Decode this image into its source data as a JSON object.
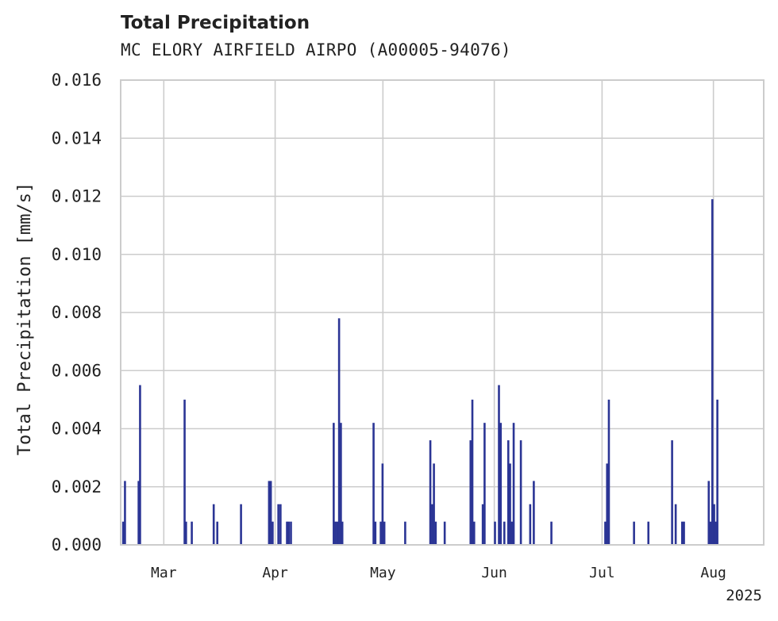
{
  "chart_data": {
    "type": "bar",
    "title": "Total Precipitation",
    "subtitle": "MC ELORY AIRFIELD AIRPO (A00005-94076)",
    "ylabel": "Total Precipitation [mm/s]",
    "xlabel": "",
    "ylim": [
      0,
      0.016
    ],
    "yticks": [
      "0.000",
      "0.002",
      "0.004",
      "0.006",
      "0.008",
      "0.010",
      "0.012",
      "0.014",
      "0.016"
    ],
    "xlim_days": [
      0,
      179
    ],
    "xticks": [
      {
        "label": "Mar",
        "day": 12
      },
      {
        "label": "Apr",
        "day": 43
      },
      {
        "label": "May",
        "day": 73
      },
      {
        "label": "Jun",
        "day": 104
      },
      {
        "label": "Jul",
        "day": 134
      },
      {
        "label": "Aug",
        "day": 165
      }
    ],
    "year_label": "2025",
    "grid": true,
    "bar_color": "#2b3595",
    "series": [
      {
        "name": "Total Precipitation",
        "points": [
          {
            "day": 0.7,
            "value": 0.0008
          },
          {
            "day": 1.2,
            "value": 0.0022
          },
          {
            "day": 5.0,
            "value": 0.0022
          },
          {
            "day": 5.4,
            "value": 0.0055
          },
          {
            "day": 17.8,
            "value": 0.005
          },
          {
            "day": 18.2,
            "value": 0.0008
          },
          {
            "day": 19.8,
            "value": 0.0008
          },
          {
            "day": 25.9,
            "value": 0.0014
          },
          {
            "day": 26.9,
            "value": 0.0008
          },
          {
            "day": 33.5,
            "value": 0.0014
          },
          {
            "day": 41.3,
            "value": 0.0022
          },
          {
            "day": 41.8,
            "value": 0.0022
          },
          {
            "day": 42.3,
            "value": 0.0008
          },
          {
            "day": 43.9,
            "value": 0.0014
          },
          {
            "day": 44.5,
            "value": 0.0014
          },
          {
            "day": 46.3,
            "value": 0.0008
          },
          {
            "day": 46.8,
            "value": 0.0008
          },
          {
            "day": 47.4,
            "value": 0.0008
          },
          {
            "day": 59.3,
            "value": 0.0042
          },
          {
            "day": 59.8,
            "value": 0.0008
          },
          {
            "day": 60.3,
            "value": 0.0008
          },
          {
            "day": 60.8,
            "value": 0.0078
          },
          {
            "day": 61.3,
            "value": 0.0042
          },
          {
            "day": 61.7,
            "value": 0.0008
          },
          {
            "day": 70.4,
            "value": 0.0042
          },
          {
            "day": 70.9,
            "value": 0.0008
          },
          {
            "day": 72.4,
            "value": 0.0008
          },
          {
            "day": 72.9,
            "value": 0.0028
          },
          {
            "day": 73.4,
            "value": 0.0008
          },
          {
            "day": 79.2,
            "value": 0.0008
          },
          {
            "day": 86.2,
            "value": 0.0036
          },
          {
            "day": 86.7,
            "value": 0.0014
          },
          {
            "day": 87.2,
            "value": 0.0028
          },
          {
            "day": 87.7,
            "value": 0.0008
          },
          {
            "day": 90.2,
            "value": 0.0008
          },
          {
            "day": 97.4,
            "value": 0.0036
          },
          {
            "day": 97.9,
            "value": 0.005
          },
          {
            "day": 98.4,
            "value": 0.0008
          },
          {
            "day": 100.8,
            "value": 0.0014
          },
          {
            "day": 101.3,
            "value": 0.0042
          },
          {
            "day": 104.2,
            "value": 0.0008
          },
          {
            "day": 105.3,
            "value": 0.0055
          },
          {
            "day": 105.8,
            "value": 0.0042
          },
          {
            "day": 106.8,
            "value": 0.0008
          },
          {
            "day": 107.9,
            "value": 0.0036
          },
          {
            "day": 108.4,
            "value": 0.0028
          },
          {
            "day": 108.9,
            "value": 0.0008
          },
          {
            "day": 109.4,
            "value": 0.0042
          },
          {
            "day": 111.4,
            "value": 0.0036
          },
          {
            "day": 114.0,
            "value": 0.0014
          },
          {
            "day": 115.0,
            "value": 0.0022
          },
          {
            "day": 119.9,
            "value": 0.0008
          },
          {
            "day": 134.9,
            "value": 0.0008
          },
          {
            "day": 135.4,
            "value": 0.0028
          },
          {
            "day": 135.9,
            "value": 0.005
          },
          {
            "day": 142.9,
            "value": 0.0008
          },
          {
            "day": 146.9,
            "value": 0.0008
          },
          {
            "day": 153.5,
            "value": 0.0036
          },
          {
            "day": 154.5,
            "value": 0.0014
          },
          {
            "day": 156.3,
            "value": 0.0008
          },
          {
            "day": 156.8,
            "value": 0.0008
          },
          {
            "day": 163.7,
            "value": 0.0022
          },
          {
            "day": 164.2,
            "value": 0.0008
          },
          {
            "day": 164.7,
            "value": 0.0119
          },
          {
            "day": 165.2,
            "value": 0.0014
          },
          {
            "day": 165.6,
            "value": 0.0008
          },
          {
            "day": 166.1,
            "value": 0.005
          }
        ]
      }
    ]
  }
}
